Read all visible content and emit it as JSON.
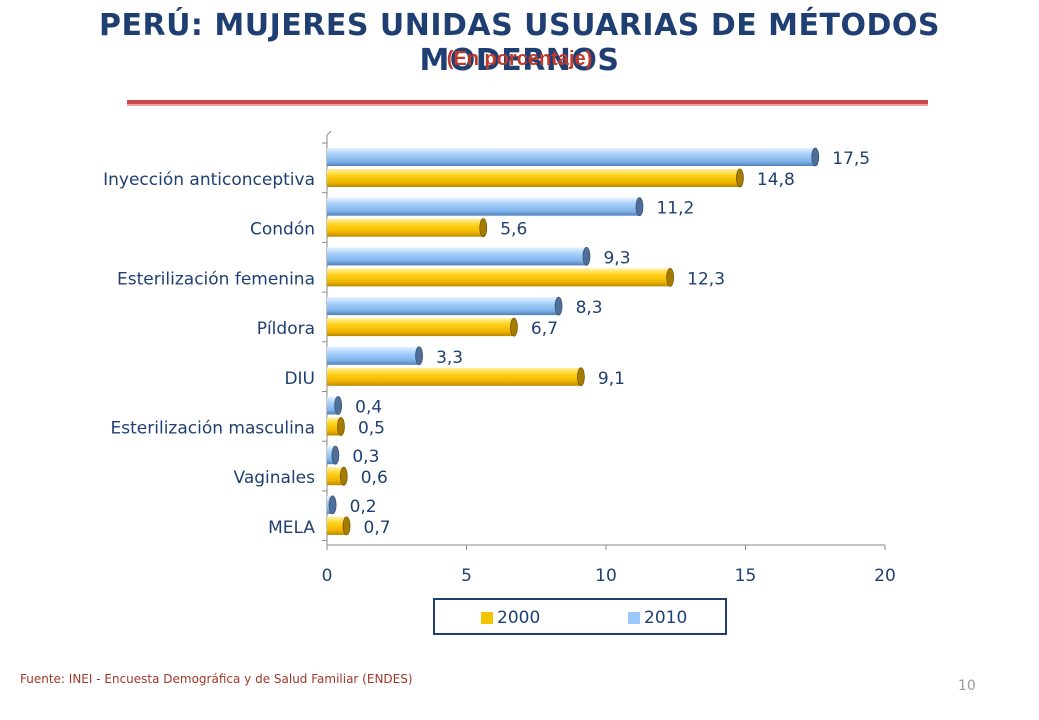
{
  "title": "PERÚ: MUJERES UNIDAS USUARIAS DE MÉTODOS MODERNOS",
  "subtitle": "(En porcentaje)",
  "source": "Fuente: INEI - Encuesta Demográfica y de Salud Familiar (ENDES)",
  "page_number": "10",
  "colors": {
    "2000": "#f5c400",
    "2010": "#99c9ff",
    "text": "#1f3f73",
    "accent": "#c0392b"
  },
  "chart_data": {
    "type": "bar",
    "orientation": "horizontal",
    "categories": [
      "Inyección anticonceptiva",
      "Condón",
      "Esterilización femenina",
      "Píldora",
      "DIU",
      "Esterilización masculina",
      "Vaginales",
      "MELA"
    ],
    "series": [
      {
        "name": "2010",
        "values": [
          17.5,
          11.2,
          9.3,
          8.3,
          3.3,
          0.4,
          0.3,
          0.2
        ],
        "labels": [
          "17,5",
          "11,2",
          "9,3",
          "8,3",
          "3,3",
          "0,4",
          "0,3",
          "0,2"
        ]
      },
      {
        "name": "2000",
        "values": [
          14.8,
          5.6,
          12.3,
          6.7,
          9.1,
          0.5,
          0.6,
          0.7
        ],
        "labels": [
          "14,8",
          "5,6",
          "12,3",
          "6,7",
          "9,1",
          "0,5",
          "0,6",
          "0,7"
        ]
      }
    ],
    "xlim": [
      0,
      20
    ],
    "xticks": [
      "0",
      "5",
      "10",
      "15",
      "20"
    ],
    "legend": {
      "position": "bottom",
      "entries": [
        "2000",
        "2010"
      ]
    },
    "grid": false
  }
}
